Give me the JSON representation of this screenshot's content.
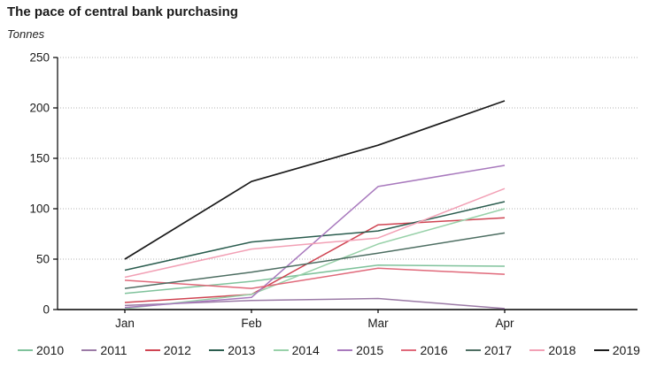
{
  "title": "The pace of central bank purchasing",
  "y_axis_unit": "Tonnes",
  "chart_data": {
    "type": "line",
    "title": "The pace of central bank purchasing",
    "ylabel": "Tonnes",
    "xlabel": "",
    "categories": [
      "Jan",
      "Feb",
      "Mar",
      "Apr"
    ],
    "ylim": [
      0,
      250
    ],
    "ytick_step": 50,
    "grid": "horizontal-dotted",
    "legend_position": "bottom",
    "series": [
      {
        "name": "2010",
        "color": "#7fc29b",
        "values": [
          16,
          28,
          44,
          43
        ]
      },
      {
        "name": "2011",
        "color": "#9b7aa6",
        "values": [
          4,
          9,
          11,
          1
        ]
      },
      {
        "name": "2012",
        "color": "#cf4452",
        "values": [
          7,
          15,
          84,
          91
        ]
      },
      {
        "name": "2013",
        "color": "#2a5c4e",
        "values": [
          39,
          67,
          78,
          107
        ]
      },
      {
        "name": "2014",
        "color": "#98d1a9",
        "values": [
          1,
          15,
          65,
          100
        ]
      },
      {
        "name": "2015",
        "color": "#a879bd",
        "values": [
          2,
          12,
          122,
          143
        ]
      },
      {
        "name": "2016",
        "color": "#e0697a",
        "values": [
          29,
          21,
          41,
          35
        ]
      },
      {
        "name": "2017",
        "color": "#4d6e62",
        "values": [
          21,
          37,
          56,
          76
        ]
      },
      {
        "name": "2018",
        "color": "#f2a0b5",
        "values": [
          32,
          60,
          71,
          120
        ]
      },
      {
        "name": "2019",
        "color": "#1a1a1a",
        "values": [
          50,
          127,
          163,
          207
        ]
      }
    ]
  }
}
